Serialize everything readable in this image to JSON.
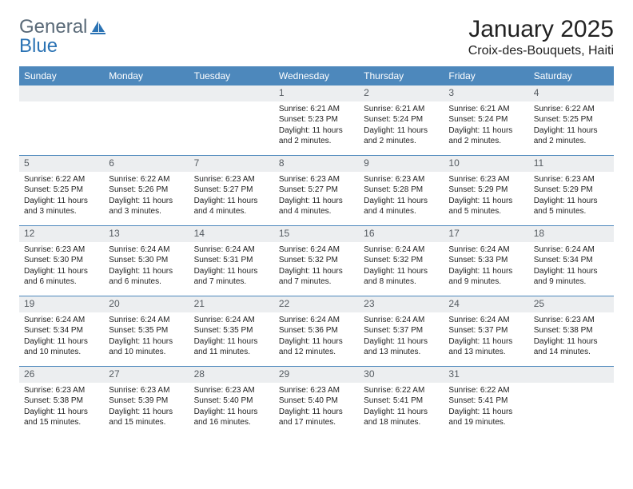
{
  "brand": {
    "part1": "General",
    "part2": "Blue"
  },
  "colors": {
    "accent": "#4d88bc",
    "daybar_bg": "#eceef0",
    "daybar_text": "#555b61",
    "text": "#222222",
    "logo_grey": "#5a6a78",
    "logo_blue": "#2b73b4"
  },
  "title": "January 2025",
  "location": "Croix-des-Bouquets, Haiti",
  "day_headers": [
    "Sunday",
    "Monday",
    "Tuesday",
    "Wednesday",
    "Thursday",
    "Friday",
    "Saturday"
  ],
  "weeks": [
    [
      {
        "day": "",
        "sunrise": "",
        "sunset": "",
        "daylight": ""
      },
      {
        "day": "",
        "sunrise": "",
        "sunset": "",
        "daylight": ""
      },
      {
        "day": "",
        "sunrise": "",
        "sunset": "",
        "daylight": ""
      },
      {
        "day": "1",
        "sunrise": "Sunrise: 6:21 AM",
        "sunset": "Sunset: 5:23 PM",
        "daylight": "Daylight: 11 hours and 2 minutes."
      },
      {
        "day": "2",
        "sunrise": "Sunrise: 6:21 AM",
        "sunset": "Sunset: 5:24 PM",
        "daylight": "Daylight: 11 hours and 2 minutes."
      },
      {
        "day": "3",
        "sunrise": "Sunrise: 6:21 AM",
        "sunset": "Sunset: 5:24 PM",
        "daylight": "Daylight: 11 hours and 2 minutes."
      },
      {
        "day": "4",
        "sunrise": "Sunrise: 6:22 AM",
        "sunset": "Sunset: 5:25 PM",
        "daylight": "Daylight: 11 hours and 2 minutes."
      }
    ],
    [
      {
        "day": "5",
        "sunrise": "Sunrise: 6:22 AM",
        "sunset": "Sunset: 5:25 PM",
        "daylight": "Daylight: 11 hours and 3 minutes."
      },
      {
        "day": "6",
        "sunrise": "Sunrise: 6:22 AM",
        "sunset": "Sunset: 5:26 PM",
        "daylight": "Daylight: 11 hours and 3 minutes."
      },
      {
        "day": "7",
        "sunrise": "Sunrise: 6:23 AM",
        "sunset": "Sunset: 5:27 PM",
        "daylight": "Daylight: 11 hours and 4 minutes."
      },
      {
        "day": "8",
        "sunrise": "Sunrise: 6:23 AM",
        "sunset": "Sunset: 5:27 PM",
        "daylight": "Daylight: 11 hours and 4 minutes."
      },
      {
        "day": "9",
        "sunrise": "Sunrise: 6:23 AM",
        "sunset": "Sunset: 5:28 PM",
        "daylight": "Daylight: 11 hours and 4 minutes."
      },
      {
        "day": "10",
        "sunrise": "Sunrise: 6:23 AM",
        "sunset": "Sunset: 5:29 PM",
        "daylight": "Daylight: 11 hours and 5 minutes."
      },
      {
        "day": "11",
        "sunrise": "Sunrise: 6:23 AM",
        "sunset": "Sunset: 5:29 PM",
        "daylight": "Daylight: 11 hours and 5 minutes."
      }
    ],
    [
      {
        "day": "12",
        "sunrise": "Sunrise: 6:23 AM",
        "sunset": "Sunset: 5:30 PM",
        "daylight": "Daylight: 11 hours and 6 minutes."
      },
      {
        "day": "13",
        "sunrise": "Sunrise: 6:24 AM",
        "sunset": "Sunset: 5:30 PM",
        "daylight": "Daylight: 11 hours and 6 minutes."
      },
      {
        "day": "14",
        "sunrise": "Sunrise: 6:24 AM",
        "sunset": "Sunset: 5:31 PM",
        "daylight": "Daylight: 11 hours and 7 minutes."
      },
      {
        "day": "15",
        "sunrise": "Sunrise: 6:24 AM",
        "sunset": "Sunset: 5:32 PM",
        "daylight": "Daylight: 11 hours and 7 minutes."
      },
      {
        "day": "16",
        "sunrise": "Sunrise: 6:24 AM",
        "sunset": "Sunset: 5:32 PM",
        "daylight": "Daylight: 11 hours and 8 minutes."
      },
      {
        "day": "17",
        "sunrise": "Sunrise: 6:24 AM",
        "sunset": "Sunset: 5:33 PM",
        "daylight": "Daylight: 11 hours and 9 minutes."
      },
      {
        "day": "18",
        "sunrise": "Sunrise: 6:24 AM",
        "sunset": "Sunset: 5:34 PM",
        "daylight": "Daylight: 11 hours and 9 minutes."
      }
    ],
    [
      {
        "day": "19",
        "sunrise": "Sunrise: 6:24 AM",
        "sunset": "Sunset: 5:34 PM",
        "daylight": "Daylight: 11 hours and 10 minutes."
      },
      {
        "day": "20",
        "sunrise": "Sunrise: 6:24 AM",
        "sunset": "Sunset: 5:35 PM",
        "daylight": "Daylight: 11 hours and 10 minutes."
      },
      {
        "day": "21",
        "sunrise": "Sunrise: 6:24 AM",
        "sunset": "Sunset: 5:35 PM",
        "daylight": "Daylight: 11 hours and 11 minutes."
      },
      {
        "day": "22",
        "sunrise": "Sunrise: 6:24 AM",
        "sunset": "Sunset: 5:36 PM",
        "daylight": "Daylight: 11 hours and 12 minutes."
      },
      {
        "day": "23",
        "sunrise": "Sunrise: 6:24 AM",
        "sunset": "Sunset: 5:37 PM",
        "daylight": "Daylight: 11 hours and 13 minutes."
      },
      {
        "day": "24",
        "sunrise": "Sunrise: 6:24 AM",
        "sunset": "Sunset: 5:37 PM",
        "daylight": "Daylight: 11 hours and 13 minutes."
      },
      {
        "day": "25",
        "sunrise": "Sunrise: 6:23 AM",
        "sunset": "Sunset: 5:38 PM",
        "daylight": "Daylight: 11 hours and 14 minutes."
      }
    ],
    [
      {
        "day": "26",
        "sunrise": "Sunrise: 6:23 AM",
        "sunset": "Sunset: 5:38 PM",
        "daylight": "Daylight: 11 hours and 15 minutes."
      },
      {
        "day": "27",
        "sunrise": "Sunrise: 6:23 AM",
        "sunset": "Sunset: 5:39 PM",
        "daylight": "Daylight: 11 hours and 15 minutes."
      },
      {
        "day": "28",
        "sunrise": "Sunrise: 6:23 AM",
        "sunset": "Sunset: 5:40 PM",
        "daylight": "Daylight: 11 hours and 16 minutes."
      },
      {
        "day": "29",
        "sunrise": "Sunrise: 6:23 AM",
        "sunset": "Sunset: 5:40 PM",
        "daylight": "Daylight: 11 hours and 17 minutes."
      },
      {
        "day": "30",
        "sunrise": "Sunrise: 6:22 AM",
        "sunset": "Sunset: 5:41 PM",
        "daylight": "Daylight: 11 hours and 18 minutes."
      },
      {
        "day": "31",
        "sunrise": "Sunrise: 6:22 AM",
        "sunset": "Sunset: 5:41 PM",
        "daylight": "Daylight: 11 hours and 19 minutes."
      },
      {
        "day": "",
        "sunrise": "",
        "sunset": "",
        "daylight": ""
      }
    ]
  ]
}
